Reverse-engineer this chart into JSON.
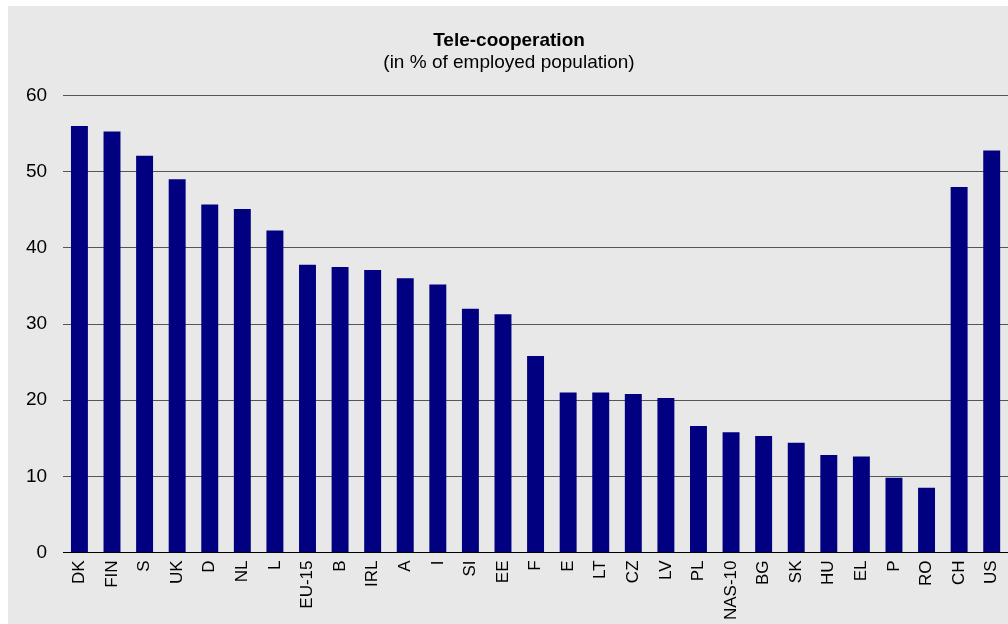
{
  "chart_data": {
    "type": "bar",
    "title": "Tele-cooperation",
    "subtitle": "(in % of employed population)",
    "categories": [
      "DK",
      "FIN",
      "S",
      "UK",
      "D",
      "NL",
      "L",
      "EU-15",
      "B",
      "IRL",
      "A",
      "I",
      "SI",
      "EE",
      "F",
      "E",
      "LT",
      "CZ",
      "LV",
      "PL",
      "NAS-10",
      "BG",
      "SK",
      "HU",
      "EL",
      "P",
      "RO",
      "CH",
      "US"
    ],
    "values": [
      56.0,
      55.3,
      52.1,
      49.0,
      45.7,
      45.1,
      42.3,
      37.8,
      37.5,
      37.1,
      36.0,
      35.2,
      32.0,
      31.3,
      25.8,
      21.0,
      21.0,
      20.8,
      20.3,
      16.6,
      15.8,
      15.3,
      14.4,
      12.8,
      12.6,
      9.8,
      8.5,
      48.0,
      52.8
    ],
    "color": "#000080",
    "ylim": [
      0,
      60
    ],
    "yticks": [
      0,
      10,
      20,
      30,
      40,
      50,
      60
    ],
    "grid": "y"
  }
}
